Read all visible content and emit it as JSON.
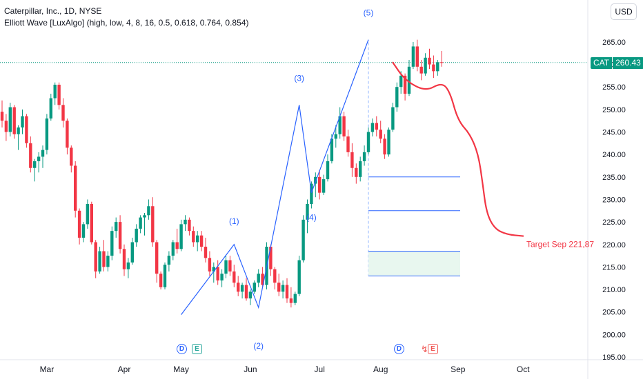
{
  "header": {
    "symbol_line": "Caterpillar, Inc., 1D, NYSE",
    "indicator_line": "Elliott Wave [LuxAlgo] (high, low, 4, 8, 16, 0.5, 0.618, 0.764, 0.854)"
  },
  "currency": "USD",
  "price_tag": {
    "symbol": "CAT",
    "value": "260.43"
  },
  "colors": {
    "up": "#089981",
    "down": "#f23645",
    "wave": "#2962ff",
    "target": "#f23645",
    "axis_text": "#131722"
  },
  "events": [
    {
      "type": "D",
      "near": "May"
    },
    {
      "type": "E",
      "near": "May"
    },
    {
      "type": "D",
      "near": "Jul"
    },
    {
      "type": "E",
      "near": "Aug",
      "icon": "flash-icon"
    }
  ],
  "chart_data": {
    "type": "candlestick",
    "x_unit": "trading days from left edge of chart",
    "ylim": [
      195,
      275
    ],
    "y_ticks": [
      "195.00",
      "200.00",
      "205.00",
      "210.00",
      "215.00",
      "220.00",
      "225.00",
      "230.00",
      "235.00",
      "240.00",
      "245.00",
      "250.00",
      "255.00",
      "260.00",
      "265.00"
    ],
    "x_ticks": [
      {
        "label": "Mar",
        "day": 11
      },
      {
        "label": "Apr",
        "day": 30
      },
      {
        "label": "May",
        "day": 44
      },
      {
        "label": "Jun",
        "day": 61
      },
      {
        "label": "Jul",
        "day": 78
      },
      {
        "label": "Aug",
        "day": 93
      },
      {
        "label": "Sep",
        "day": 112
      },
      {
        "label": "Oct",
        "day": 128
      }
    ],
    "current_price": 260.43,
    "candles": [
      [
        249.5,
        252.0,
        246.0,
        247.5
      ],
      [
        247.5,
        249.0,
        243.0,
        245.0
      ],
      [
        245.0,
        251.5,
        244.0,
        250.5
      ],
      [
        250.5,
        251.0,
        243.5,
        244.5
      ],
      [
        244.5,
        246.5,
        241.0,
        246.0
      ],
      [
        246.0,
        250.0,
        244.5,
        248.5
      ],
      [
        248.5,
        249.0,
        241.5,
        242.5
      ],
      [
        242.5,
        244.0,
        236.0,
        237.0
      ],
      [
        237.0,
        239.0,
        234.0,
        238.5
      ],
      [
        238.5,
        240.5,
        236.0,
        239.5
      ],
      [
        239.5,
        242.0,
        237.0,
        241.0
      ],
      [
        241.0,
        249.0,
        240.0,
        248.0
      ],
      [
        248.0,
        253.5,
        247.5,
        252.5
      ],
      [
        252.5,
        256.0,
        251.0,
        255.5
      ],
      [
        255.5,
        256.0,
        250.0,
        251.0
      ],
      [
        251.0,
        252.5,
        246.0,
        247.5
      ],
      [
        247.5,
        248.0,
        240.0,
        241.5
      ],
      [
        241.5,
        242.0,
        236.0,
        237.5
      ],
      [
        237.5,
        238.5,
        226.0,
        227.5
      ],
      [
        227.5,
        228.0,
        220.0,
        221.5
      ],
      [
        221.5,
        225.0,
        220.5,
        224.5
      ],
      [
        224.5,
        230.0,
        223.5,
        229.0
      ],
      [
        229.0,
        229.5,
        220.0,
        220.5
      ],
      [
        220.5,
        221.0,
        212.5,
        214.0
      ],
      [
        214.0,
        219.5,
        213.5,
        218.5
      ],
      [
        218.5,
        221.0,
        214.0,
        215.0
      ],
      [
        215.0,
        218.5,
        214.0,
        217.5
      ],
      [
        217.5,
        224.0,
        216.5,
        223.0
      ],
      [
        223.0,
        226.0,
        221.5,
        225.0
      ],
      [
        225.0,
        226.5,
        218.0,
        219.0
      ],
      [
        219.0,
        220.0,
        213.0,
        214.5
      ],
      [
        214.5,
        217.0,
        212.5,
        216.0
      ],
      [
        216.0,
        221.5,
        215.5,
        220.5
      ],
      [
        220.5,
        224.5,
        219.5,
        223.5
      ],
      [
        223.5,
        226.5,
        222.5,
        226.0
      ],
      [
        226.0,
        227.0,
        222.0,
        226.5
      ],
      [
        226.5,
        230.0,
        225.5,
        228.5
      ],
      [
        228.5,
        230.5,
        219.5,
        220.5
      ],
      [
        220.5,
        221.0,
        211.5,
        213.5
      ],
      [
        213.5,
        214.0,
        210.0,
        210.5
      ],
      [
        210.5,
        216.0,
        210.0,
        215.5
      ],
      [
        215.5,
        218.5,
        214.0,
        217.5
      ],
      [
        217.5,
        221.0,
        216.5,
        220.5
      ],
      [
        220.5,
        223.5,
        218.0,
        219.0
      ],
      [
        219.0,
        225.5,
        218.5,
        224.5
      ],
      [
        224.5,
        226.5,
        223.0,
        225.5
      ],
      [
        225.5,
        226.0,
        222.0,
        223.0
      ],
      [
        223.0,
        224.0,
        219.5,
        220.5
      ],
      [
        220.5,
        223.0,
        218.5,
        222.0
      ],
      [
        222.0,
        223.0,
        218.5,
        219.5
      ],
      [
        219.5,
        221.5,
        216.0,
        217.0
      ],
      [
        217.0,
        218.5,
        213.0,
        214.0
      ],
      [
        214.0,
        216.0,
        211.5,
        215.0
      ],
      [
        215.0,
        216.5,
        211.0,
        212.0
      ],
      [
        212.0,
        214.5,
        210.5,
        213.5
      ],
      [
        213.5,
        217.5,
        212.5,
        216.5
      ],
      [
        216.5,
        217.5,
        213.0,
        214.0
      ],
      [
        214.0,
        215.5,
        210.5,
        211.5
      ],
      [
        211.5,
        213.0,
        208.5,
        209.5
      ],
      [
        209.5,
        211.5,
        208.0,
        211.0
      ],
      [
        211.0,
        212.5,
        207.5,
        208.0
      ],
      [
        208.0,
        210.0,
        206.5,
        209.5
      ],
      [
        209.5,
        212.0,
        209.0,
        211.5
      ],
      [
        211.5,
        214.5,
        210.5,
        213.5
      ],
      [
        213.5,
        215.0,
        210.5,
        211.0
      ],
      [
        211.0,
        220.5,
        210.0,
        219.5
      ],
      [
        219.5,
        220.0,
        213.0,
        214.5
      ],
      [
        214.5,
        215.0,
        210.0,
        211.5
      ],
      [
        211.5,
        213.5,
        208.5,
        209.5
      ],
      [
        209.5,
        212.0,
        208.0,
        211.0
      ],
      [
        211.0,
        212.5,
        207.0,
        208.0
      ],
      [
        208.0,
        210.5,
        206.0,
        207.0
      ],
      [
        207.0,
        209.5,
        206.5,
        209.0
      ],
      [
        209.0,
        217.5,
        208.5,
        216.5
      ],
      [
        216.5,
        226.5,
        216.0,
        225.5
      ],
      [
        225.5,
        230.0,
        222.5,
        229.0
      ],
      [
        229.0,
        234.0,
        228.0,
        233.5
      ],
      [
        233.5,
        236.0,
        230.5,
        235.0
      ],
      [
        235.0,
        236.5,
        230.0,
        231.5
      ],
      [
        231.5,
        235.5,
        231.0,
        234.5
      ],
      [
        234.5,
        240.0,
        234.0,
        238.5
      ],
      [
        238.5,
        244.5,
        238.0,
        243.5
      ],
      [
        243.5,
        246.5,
        241.5,
        244.5
      ],
      [
        244.5,
        250.5,
        243.5,
        248.5
      ],
      [
        248.5,
        249.5,
        243.0,
        244.0
      ],
      [
        244.0,
        245.5,
        239.5,
        240.5
      ],
      [
        240.5,
        242.5,
        235.0,
        237.0
      ],
      [
        237.0,
        238.0,
        233.5,
        235.0
      ],
      [
        235.0,
        239.5,
        234.0,
        238.5
      ],
      [
        238.5,
        242.0,
        237.5,
        240.5
      ],
      [
        240.5,
        246.0,
        240.0,
        245.0
      ],
      [
        245.0,
        248.0,
        244.0,
        247.0
      ],
      [
        247.0,
        248.5,
        244.0,
        245.5
      ],
      [
        245.5,
        247.5,
        242.5,
        243.5
      ],
      [
        243.5,
        244.5,
        239.0,
        240.0
      ],
      [
        240.0,
        246.0,
        239.5,
        245.5
      ],
      [
        245.5,
        251.5,
        245.0,
        250.5
      ],
      [
        250.5,
        256.0,
        249.5,
        255.0
      ],
      [
        255.0,
        258.5,
        253.5,
        257.5
      ],
      [
        257.5,
        258.0,
        252.0,
        253.5
      ],
      [
        253.5,
        261.0,
        253.0,
        259.5
      ],
      [
        259.5,
        265.0,
        259.0,
        264.0
      ],
      [
        264.0,
        265.5,
        258.5,
        259.5
      ],
      [
        259.5,
        261.0,
        256.5,
        258.0
      ],
      [
        258.0,
        262.5,
        257.5,
        261.5
      ],
      [
        261.5,
        263.5,
        259.0,
        260.0
      ],
      [
        260.0,
        262.0,
        257.0,
        258.5
      ],
      [
        258.5,
        261.0,
        257.5,
        260.5
      ],
      [
        260.5,
        263.0,
        259.5,
        260.4
      ]
    ],
    "elliott_wave": [
      {
        "day": 44,
        "value": 204.4
      },
      {
        "day": 57,
        "value": 220.0,
        "label": "(1)"
      },
      {
        "day": 63,
        "value": 206.0,
        "label": "(2)"
      },
      {
        "day": 73,
        "value": 251.0,
        "label": "(3)"
      },
      {
        "day": 76,
        "value": 231.5,
        "label": "(4)"
      },
      {
        "day": 90,
        "value": 265.5,
        "label": "(5)"
      }
    ],
    "fib_levels": [
      {
        "value": 235.0
      },
      {
        "value": 227.5
      },
      {
        "value": 218.5
      },
      {
        "value": 213.0
      }
    ],
    "forecast": {
      "label": "Target Sep 221,87",
      "value": 221.87,
      "path": [
        {
          "day": 96,
          "value": 260.43
        },
        {
          "day": 99,
          "value": 256.5
        },
        {
          "day": 104,
          "value": 254.0
        },
        {
          "day": 108,
          "value": 256.0
        },
        {
          "day": 110,
          "value": 254.0
        },
        {
          "day": 112,
          "value": 247.5
        },
        {
          "day": 115,
          "value": 244.5
        },
        {
          "day": 117,
          "value": 240.0
        },
        {
          "day": 118,
          "value": 234.0
        },
        {
          "day": 119,
          "value": 227.0
        },
        {
          "day": 121,
          "value": 223.5
        },
        {
          "day": 124,
          "value": 222.2
        },
        {
          "day": 128,
          "value": 221.87
        }
      ]
    }
  }
}
